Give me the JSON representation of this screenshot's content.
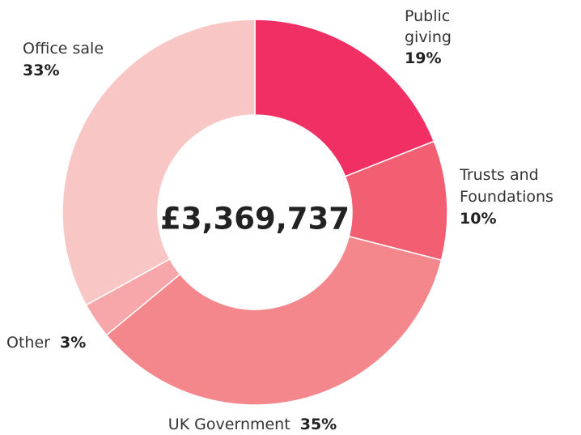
{
  "chart_data": {
    "type": "pie",
    "center_label": "£3,369,737",
    "slices": [
      {
        "label": "Public giving",
        "label_lines": [
          "Public",
          "giving"
        ],
        "value": 19,
        "value_label": "19%",
        "color": "#f03064"
      },
      {
        "label": "Trusts and Foundations",
        "label_lines": [
          "Trusts and",
          "Foundations"
        ],
        "value": 10,
        "value_label": "10%",
        "color": "#f25f72"
      },
      {
        "label": "UK Government",
        "label_lines": [
          "UK Government"
        ],
        "value": 35,
        "value_label": "35%",
        "color": "#f4878c"
      },
      {
        "label": "Other",
        "label_lines": [
          "Other"
        ],
        "value": 3,
        "value_label": "3%",
        "color": "#f7a6a9"
      },
      {
        "label": "Office sale",
        "label_lines": [
          "Office sale"
        ],
        "value": 33,
        "value_label": "33%",
        "color": "#f9c6c6"
      }
    ]
  }
}
